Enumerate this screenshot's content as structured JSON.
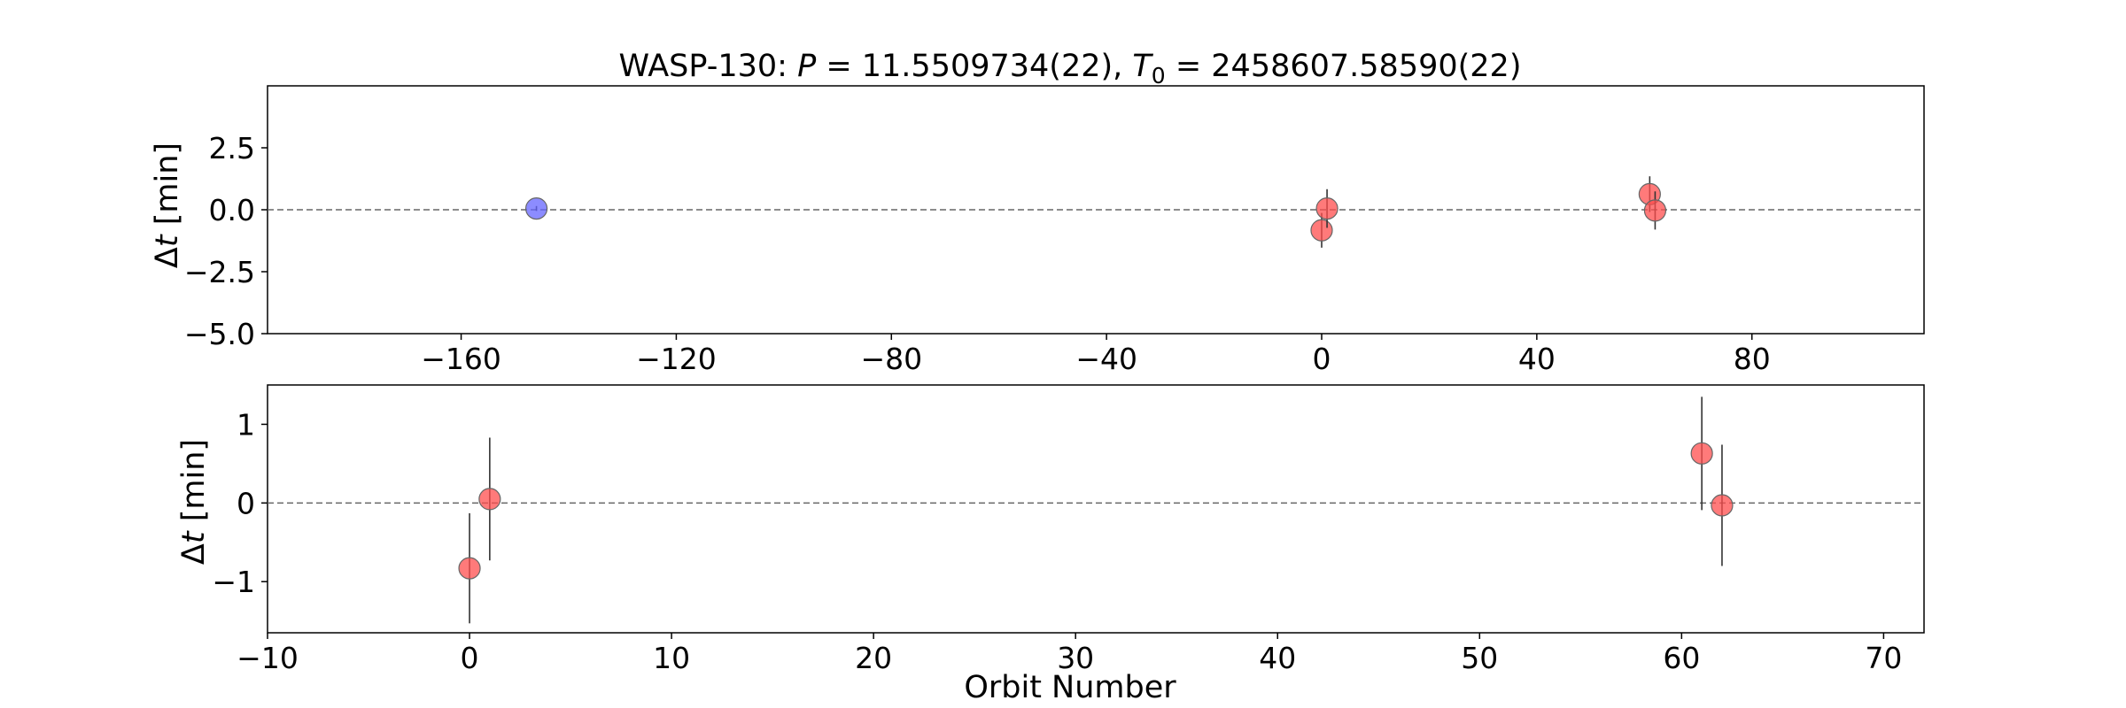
{
  "figure": {
    "title_prefix": "WASP-130: ",
    "title_P_symbol": "P",
    "title_P_value": " = 11.5509734(22), ",
    "title_T_symbol": "T",
    "title_T_sub": "0",
    "title_T_value": " = 2458607.58590(22)",
    "ylabel_delta": "Δ",
    "ylabel_t": "t",
    "ylabel_unit": " [min]",
    "xlabel_bottom": "Orbit Number"
  },
  "colors": {
    "tess_points": "#ff4d4d",
    "archival_points": "#6666ff",
    "errorbar": "#333333",
    "zero_line": "#666666"
  },
  "chart_data": [
    {
      "type": "scatter",
      "panel": "top",
      "xlim": [
        -196,
        112
      ],
      "ylim": [
        -5.0,
        5.0
      ],
      "xticks": [
        -160,
        -120,
        -80,
        -40,
        0,
        40,
        80
      ],
      "xtick_labels": [
        "−160",
        "−120",
        "−80",
        "−40",
        "0",
        "40",
        "80"
      ],
      "yticks": [
        2.5,
        0.0,
        -2.5,
        -5.0
      ],
      "ytick_labels": [
        "2.5",
        "0.0",
        "−2.5",
        "−5.0"
      ],
      "zero_line": true,
      "series": [
        {
          "color": "#6666ff",
          "x": [
            -146
          ],
          "y": [
            0.05
          ],
          "err": [
            0.1
          ]
        },
        {
          "color": "#ff4d4d",
          "x": [
            0,
            1,
            61,
            62
          ],
          "y": [
            -0.83,
            0.05,
            0.63,
            -0.03
          ],
          "err": [
            0.7,
            0.78,
            0.72,
            0.77
          ]
        }
      ]
    },
    {
      "type": "scatter",
      "panel": "bottom",
      "xlim": [
        -10,
        72
      ],
      "ylim": [
        -1.65,
        1.5
      ],
      "xticks": [
        -10,
        0,
        10,
        20,
        30,
        40,
        50,
        60,
        70
      ],
      "xtick_labels": [
        "−10",
        "0",
        "10",
        "20",
        "30",
        "40",
        "50",
        "60",
        "70"
      ],
      "yticks": [
        1,
        0,
        -1
      ],
      "ytick_labels": [
        "1",
        "0",
        "−1"
      ],
      "xlabel": "Orbit Number",
      "zero_line": true,
      "series": [
        {
          "color": "#ff4d4d",
          "x": [
            0,
            1,
            61,
            62
          ],
          "y": [
            -0.83,
            0.05,
            0.63,
            -0.03
          ],
          "err": [
            0.7,
            0.78,
            0.72,
            0.77
          ]
        }
      ]
    }
  ]
}
